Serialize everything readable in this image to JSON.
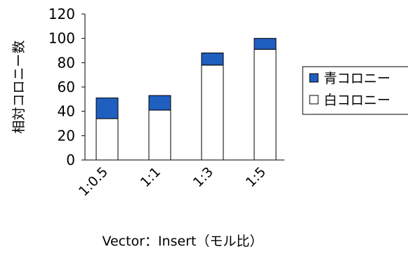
{
  "chart_data": {
    "type": "bar",
    "stacked": true,
    "categories": [
      "1:0.5",
      "1:1",
      "1:3",
      "1:5"
    ],
    "series": [
      {
        "name": "白コロニー",
        "color": "#ffffff",
        "values": [
          34,
          41,
          78,
          91
        ]
      },
      {
        "name": "青コロニー",
        "color": "#1f5fbf",
        "values": [
          17,
          12,
          10,
          9
        ]
      }
    ],
    "xlabel": "Vector：Insert（モル比）",
    "ylabel": "相対コロニー数",
    "ylim": [
      0,
      120
    ],
    "yticks": [
      0,
      20,
      40,
      60,
      80,
      100,
      120
    ],
    "grid": false,
    "legend_position": "right",
    "legend_order": [
      "青コロニー",
      "白コロニー"
    ]
  }
}
